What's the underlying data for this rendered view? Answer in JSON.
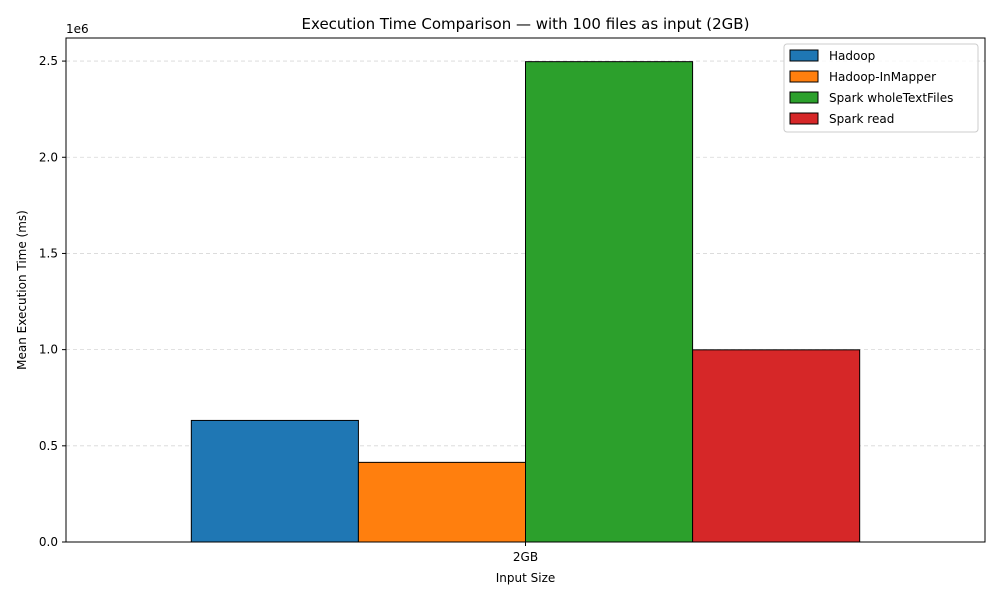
{
  "chart_data": {
    "type": "bar",
    "title": "Execution Time Comparison — with 100 files as input (2GB)",
    "xlabel": "Input Size",
    "ylabel": "Mean Execution Time (ms)",
    "y_offset_label": "1e6",
    "ylim": [
      0,
      2620000
    ],
    "y_ticks": [
      0,
      500000,
      1000000,
      1500000,
      2000000,
      2500000
    ],
    "y_tick_labels": [
      "0.0",
      "0.5",
      "1.0",
      "1.5",
      "2.0",
      "2.5"
    ],
    "categories": [
      "2GB"
    ],
    "grid": "y-dashed",
    "legend_position": "top-right",
    "series": [
      {
        "name": "Hadoop",
        "color": "#1f77b4",
        "values": [
          632000
        ]
      },
      {
        "name": "Hadoop-InMapper",
        "color": "#ff7f0e",
        "values": [
          414000
        ]
      },
      {
        "name": "Spark wholeTextFiles",
        "color": "#2ca02c",
        "values": [
          2497000
        ]
      },
      {
        "name": "Spark read",
        "color": "#d62728",
        "values": [
          999000
        ]
      }
    ]
  }
}
